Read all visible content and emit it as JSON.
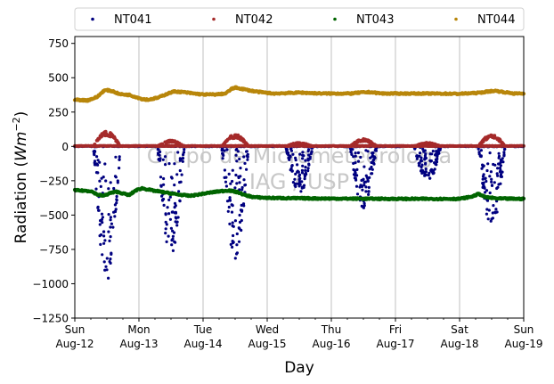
{
  "chart_data": {
    "type": "scatter",
    "title": "",
    "xlabel": "Day",
    "ylabel_prefix": "Radiation (",
    "ylabel_unit": "Wm",
    "ylabel_exp": "−2",
    "ylabel_suffix": ")",
    "xlim_days": [
      0,
      7
    ],
    "ylim": [
      -1250,
      800
    ],
    "yticks": [
      750,
      500,
      250,
      0,
      -250,
      -500,
      -750,
      -1000,
      -1250
    ],
    "ytick_labels": [
      "750",
      "500",
      "250",
      "0",
      "−250",
      "−500",
      "−750",
      "−1000",
      "−1250"
    ],
    "xticks": [
      {
        "day": 0,
        "dow": "Sun",
        "date": "Aug-12"
      },
      {
        "day": 1,
        "dow": "Mon",
        "date": "Aug-13"
      },
      {
        "day": 2,
        "dow": "Tue",
        "date": "Aug-14"
      },
      {
        "day": 3,
        "dow": "Wed",
        "date": "Aug-15"
      },
      {
        "day": 4,
        "dow": "Thu",
        "date": "Aug-16"
      },
      {
        "day": 5,
        "dow": "Fri",
        "date": "Aug-17"
      },
      {
        "day": 6,
        "dow": "Sat",
        "date": "Aug-18"
      },
      {
        "day": 7,
        "dow": "Sun",
        "date": "Aug-19"
      }
    ],
    "grid": "vertical-major",
    "legend_position": "top",
    "watermark_lines": [
      "Grupo de Micrometeorologia",
      "IAG / USP"
    ],
    "series": [
      {
        "name": "NT041",
        "color": "#000080",
        "daily_min": [
          -1010,
          -800,
          -830,
          -350,
          -450,
          -260,
          -600
        ],
        "daytime": true,
        "night_value": 0
      },
      {
        "name": "NT042",
        "color": "#a52a2a",
        "daily_max": [
          100,
          40,
          80,
          25,
          50,
          25,
          80
        ],
        "daytime": true,
        "night_value": 3
      },
      {
        "name": "NT043",
        "color": "#006400",
        "points": [
          [
            0,
            -320
          ],
          [
            0.25,
            -325
          ],
          [
            0.35,
            -350
          ],
          [
            0.45,
            -360
          ],
          [
            0.55,
            -340
          ],
          [
            0.65,
            -330
          ],
          [
            0.85,
            -355
          ],
          [
            0.95,
            -320
          ],
          [
            1.05,
            -305
          ],
          [
            1.2,
            -320
          ],
          [
            1.4,
            -335
          ],
          [
            1.6,
            -350
          ],
          [
            1.8,
            -360
          ],
          [
            2.0,
            -345
          ],
          [
            2.2,
            -330
          ],
          [
            2.4,
            -320
          ],
          [
            2.55,
            -335
          ],
          [
            2.65,
            -355
          ],
          [
            2.8,
            -370
          ],
          [
            3.0,
            -375
          ],
          [
            3.5,
            -378
          ],
          [
            4.0,
            -380
          ],
          [
            4.5,
            -381
          ],
          [
            5.0,
            -382
          ],
          [
            5.5,
            -382
          ],
          [
            6.0,
            -382
          ],
          [
            6.2,
            -365
          ],
          [
            6.3,
            -345
          ],
          [
            6.4,
            -370
          ],
          [
            6.6,
            -380
          ],
          [
            7.0,
            -382
          ]
        ]
      },
      {
        "name": "NT044",
        "color": "#b8860b",
        "points": [
          [
            0,
            340
          ],
          [
            0.2,
            335
          ],
          [
            0.35,
            360
          ],
          [
            0.45,
            405
          ],
          [
            0.5,
            410
          ],
          [
            0.6,
            400
          ],
          [
            0.7,
            380
          ],
          [
            0.85,
            375
          ],
          [
            0.95,
            360
          ],
          [
            1.05,
            345
          ],
          [
            1.15,
            340
          ],
          [
            1.3,
            355
          ],
          [
            1.45,
            385
          ],
          [
            1.55,
            400
          ],
          [
            1.7,
            395
          ],
          [
            1.85,
            385
          ],
          [
            2.0,
            378
          ],
          [
            2.2,
            378
          ],
          [
            2.35,
            385
          ],
          [
            2.45,
            420
          ],
          [
            2.5,
            428
          ],
          [
            2.6,
            420
          ],
          [
            2.75,
            405
          ],
          [
            2.9,
            395
          ],
          [
            3.1,
            385
          ],
          [
            3.3,
            388
          ],
          [
            3.5,
            392
          ],
          [
            3.7,
            388
          ],
          [
            3.9,
            385
          ],
          [
            4.1,
            385
          ],
          [
            4.3,
            385
          ],
          [
            4.45,
            392
          ],
          [
            4.6,
            395
          ],
          [
            4.8,
            385
          ],
          [
            5.0,
            385
          ],
          [
            5.5,
            385
          ],
          [
            6.0,
            383
          ],
          [
            6.3,
            390
          ],
          [
            6.45,
            400
          ],
          [
            6.55,
            405
          ],
          [
            6.7,
            395
          ],
          [
            6.85,
            385
          ],
          [
            7.0,
            385
          ]
        ]
      }
    ]
  }
}
